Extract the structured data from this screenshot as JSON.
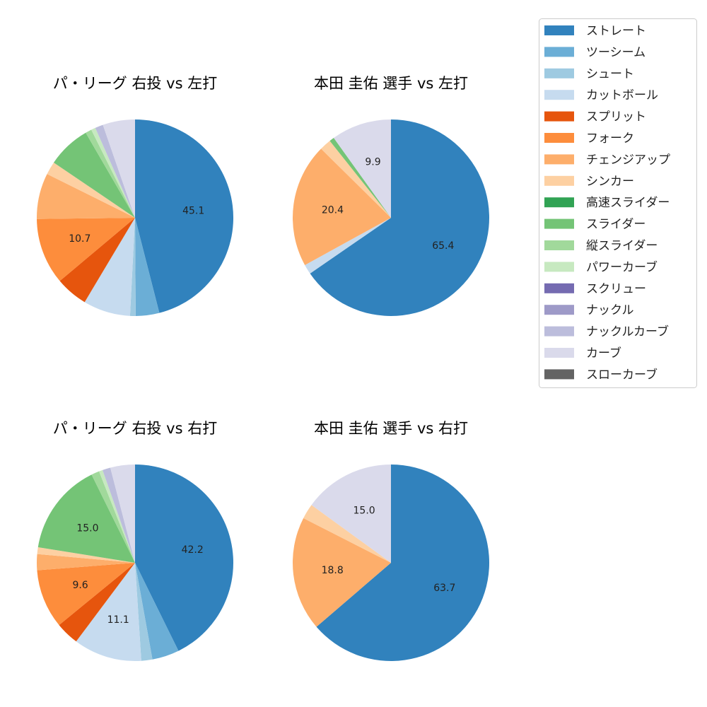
{
  "legend": [
    {
      "label": "ストレート",
      "color": "#3182bd"
    },
    {
      "label": "ツーシーム",
      "color": "#6baed6"
    },
    {
      "label": "シュート",
      "color": "#9ecae1"
    },
    {
      "label": "カットボール",
      "color": "#c6dbef"
    },
    {
      "label": "スプリット",
      "color": "#e6550d"
    },
    {
      "label": "フォーク",
      "color": "#fd8d3c"
    },
    {
      "label": "チェンジアップ",
      "color": "#fdae6b"
    },
    {
      "label": "シンカー",
      "color": "#fdd0a2"
    },
    {
      "label": "高速スライダー",
      "color": "#31a354"
    },
    {
      "label": "スライダー",
      "color": "#74c476"
    },
    {
      "label": "縦スライダー",
      "color": "#a1d99b"
    },
    {
      "label": "パワーカーブ",
      "color": "#c7e9c0"
    },
    {
      "label": "スクリュー",
      "color": "#756bb1"
    },
    {
      "label": "ナックル",
      "color": "#9e9ac8"
    },
    {
      "label": "ナックルカーブ",
      "color": "#bcbddc"
    },
    {
      "label": "カーブ",
      "color": "#dadaeb"
    },
    {
      "label": "スローカーブ",
      "color": "#636363"
    }
  ],
  "chart_data": [
    {
      "type": "pie",
      "title": "パ・リーグ 右投 vs 左打",
      "slices": [
        {
          "name": "ストレート",
          "value": 45.1,
          "label": "45.1"
        },
        {
          "name": "ツーシーム",
          "value": 3.8,
          "label": ""
        },
        {
          "name": "シュート",
          "value": 0.9,
          "label": ""
        },
        {
          "name": "カットボール",
          "value": 7.6,
          "label": ""
        },
        {
          "name": "スプリット",
          "value": 5.2,
          "label": ""
        },
        {
          "name": "フォーク",
          "value": 10.7,
          "label": "10.7"
        },
        {
          "name": "チェンジアップ",
          "value": 7.4,
          "label": ""
        },
        {
          "name": "シンカー",
          "value": 2.1,
          "label": ""
        },
        {
          "name": "スライダー",
          "value": 7.0,
          "label": ""
        },
        {
          "name": "縦スライダー",
          "value": 1.0,
          "label": ""
        },
        {
          "name": "パワーカーブ",
          "value": 0.7,
          "label": ""
        },
        {
          "name": "ナックルカーブ",
          "value": 1.3,
          "label": ""
        },
        {
          "name": "カーブ",
          "value": 5.2,
          "label": ""
        }
      ]
    },
    {
      "type": "pie",
      "title": "本田 圭佑 選手 vs 左打",
      "slices": [
        {
          "name": "ストレート",
          "value": 65.4,
          "label": "65.4"
        },
        {
          "name": "カットボール",
          "value": 1.6,
          "label": ""
        },
        {
          "name": "チェンジアップ",
          "value": 20.4,
          "label": "20.4"
        },
        {
          "name": "シンカー",
          "value": 1.9,
          "label": ""
        },
        {
          "name": "スライダー",
          "value": 0.8,
          "label": ""
        },
        {
          "name": "カーブ",
          "value": 9.9,
          "label": "9.9"
        }
      ]
    },
    {
      "type": "pie",
      "title": "パ・リーグ 右投 vs 右打",
      "slices": [
        {
          "name": "ストレート",
          "value": 42.2,
          "label": "42.2"
        },
        {
          "name": "ツーシーム",
          "value": 4.4,
          "label": ""
        },
        {
          "name": "シュート",
          "value": 1.8,
          "label": ""
        },
        {
          "name": "カットボール",
          "value": 11.1,
          "label": "11.1"
        },
        {
          "name": "スプリット",
          "value": 3.8,
          "label": ""
        },
        {
          "name": "フォーク",
          "value": 9.6,
          "label": "9.6"
        },
        {
          "name": "チェンジアップ",
          "value": 2.6,
          "label": ""
        },
        {
          "name": "シンカー",
          "value": 1.1,
          "label": ""
        },
        {
          "name": "スライダー",
          "value": 15.0,
          "label": "15.0"
        },
        {
          "name": "縦スライダー",
          "value": 1.3,
          "label": ""
        },
        {
          "name": "パワーカーブ",
          "value": 0.6,
          "label": ""
        },
        {
          "name": "ナックルカーブ",
          "value": 1.3,
          "label": ""
        },
        {
          "name": "カーブ",
          "value": 4.0,
          "label": ""
        }
      ]
    },
    {
      "type": "pie",
      "title": "本田 圭佑 選手 vs 右打",
      "slices": [
        {
          "name": "ストレート",
          "value": 63.7,
          "label": "63.7"
        },
        {
          "name": "チェンジアップ",
          "value": 18.8,
          "label": "18.8"
        },
        {
          "name": "シンカー",
          "value": 2.5,
          "label": ""
        },
        {
          "name": "カーブ",
          "value": 15.0,
          "label": "15.0"
        }
      ]
    }
  ]
}
